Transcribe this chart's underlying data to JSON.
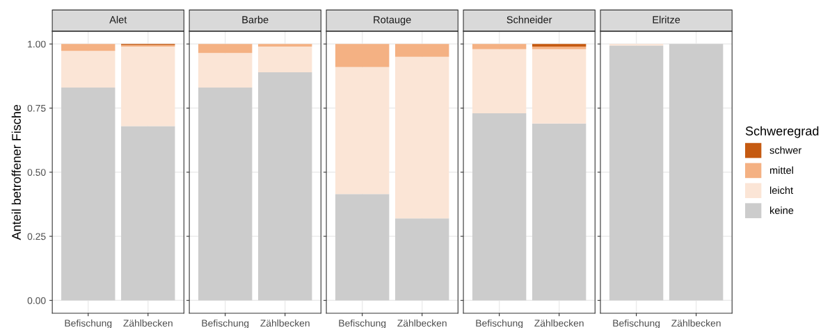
{
  "chart_data": [
    {
      "type": "bar",
      "title": "Alet",
      "ylabel": "Anteil betroffener Fische",
      "categories": [
        "Befischung",
        "Zählbecken"
      ],
      "stacked": true,
      "ylim": [
        -0.05,
        1.05
      ],
      "yticks": [
        {
          "value": 0,
          "label": "0.00"
        },
        {
          "value": 0.25,
          "label": "0.25"
        },
        {
          "value": 0.5,
          "label": "0.50"
        },
        {
          "value": 0.75,
          "label": "0.75"
        },
        {
          "value": 1,
          "label": "1.00"
        }
      ],
      "grid": true,
      "series": [
        {
          "color": "#cccccc",
          "values": [
            0.83,
            0.68
          ]
        },
        {
          "color": "#fbe5d6",
          "values": [
            0.143,
            0.31
          ]
        },
        {
          "color": "#f4b183",
          "values": [
            0.027,
            0.006
          ]
        },
        {
          "color": "#c55a11",
          "values": [
            0,
            0.004
          ]
        }
      ]
    },
    {
      "type": "bar",
      "title": "Barbe",
      "categories": [
        "Befischung",
        "Zählbecken"
      ],
      "stacked": true,
      "ylim": [
        -0.05,
        1.05
      ],
      "yticks": [
        0,
        0.25,
        0.5,
        0.75,
        1
      ],
      "tick_labels": "x",
      "grid": true,
      "series": [
        {
          "color": "#cccccc",
          "values": [
            0.83,
            0.89
          ]
        },
        {
          "color": "#fbe5d6",
          "values": [
            0.135,
            0.1
          ]
        },
        {
          "color": "#f4b183",
          "values": [
            0.035,
            0.01
          ]
        },
        {
          "color": "#c55a11",
          "values": [
            0,
            0
          ]
        }
      ]
    },
    {
      "type": "bar",
      "title": "Rotauge",
      "categories": [
        "Befischung",
        "Zählbecken"
      ],
      "stacked": true,
      "ylim": [
        -0.05,
        1.05
      ],
      "yticks": [
        0,
        0.25,
        0.5,
        0.75,
        1
      ],
      "tick_labels": "x",
      "grid": true,
      "series": [
        {
          "color": "#cccccc",
          "values": [
            0.415,
            0.32
          ]
        },
        {
          "color": "#fbe5d6",
          "values": [
            0.495,
            0.63
          ]
        },
        {
          "color": "#f4b183",
          "values": [
            0.09,
            0.05
          ]
        },
        {
          "color": "#c55a11",
          "values": [
            0,
            0
          ]
        }
      ]
    },
    {
      "type": "bar",
      "title": "Schneider",
      "categories": [
        "Befischung",
        "Zählbecken"
      ],
      "stacked": true,
      "ylim": [
        -0.05,
        1.05
      ],
      "yticks": [
        0,
        0.25,
        0.5,
        0.75,
        1
      ],
      "tick_labels": "x",
      "grid": true,
      "series": [
        {
          "color": "#cccccc",
          "values": [
            0.73,
            0.69
          ]
        },
        {
          "color": "#fbe5d6",
          "values": [
            0.25,
            0.29
          ]
        },
        {
          "color": "#f4b183",
          "values": [
            0.02,
            0.01
          ]
        },
        {
          "color": "#c55a11",
          "values": [
            0,
            0.01
          ]
        }
      ]
    },
    {
      "type": "bar",
      "title": "Elritze",
      "categories": [
        "Befischung",
        "Zählbecken"
      ],
      "stacked": true,
      "ylim": [
        -0.05,
        1.05
      ],
      "yticks": [
        0,
        0.25,
        0.5,
        0.75,
        1
      ],
      "tick_labels": "x",
      "grid": true,
      "legend": "right",
      "legend_title": "Schweregrad",
      "series": [
        {
          "name": "keine",
          "color": "#cccccc",
          "values": [
            0.994,
            1.0
          ]
        },
        {
          "name": "leicht",
          "color": "#fbe5d6",
          "values": [
            0.006,
            0
          ]
        },
        {
          "name": "mittel",
          "color": "#f4b183",
          "values": [
            0,
            0
          ]
        },
        {
          "name": "schwer",
          "color": "#c55a11",
          "values": [
            0,
            0
          ]
        }
      ]
    }
  ]
}
